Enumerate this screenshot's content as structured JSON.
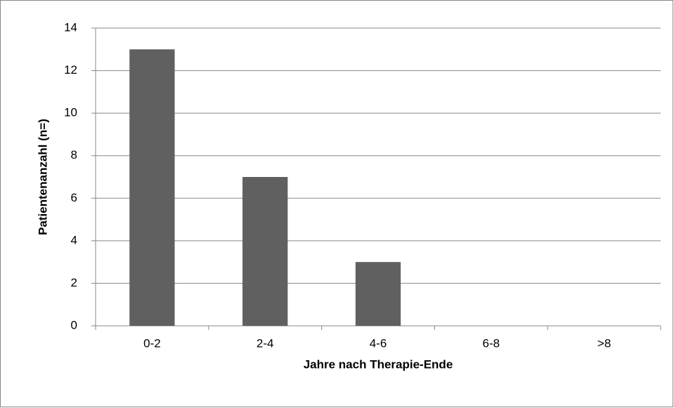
{
  "chart_data": {
    "type": "bar",
    "x_label": "Jahre nach Therapie-Ende",
    "y_label": "Patientenanzahl (n=)",
    "categories": [
      "0-2",
      "2-4",
      "4-6",
      "6-8",
      ">8"
    ],
    "values": [
      13,
      7,
      3,
      0,
      0
    ],
    "color": "#606060",
    "ylim": [
      0,
      14
    ],
    "yticks": [
      0,
      2,
      4,
      6,
      8,
      10,
      12,
      14
    ],
    "grid": true
  }
}
